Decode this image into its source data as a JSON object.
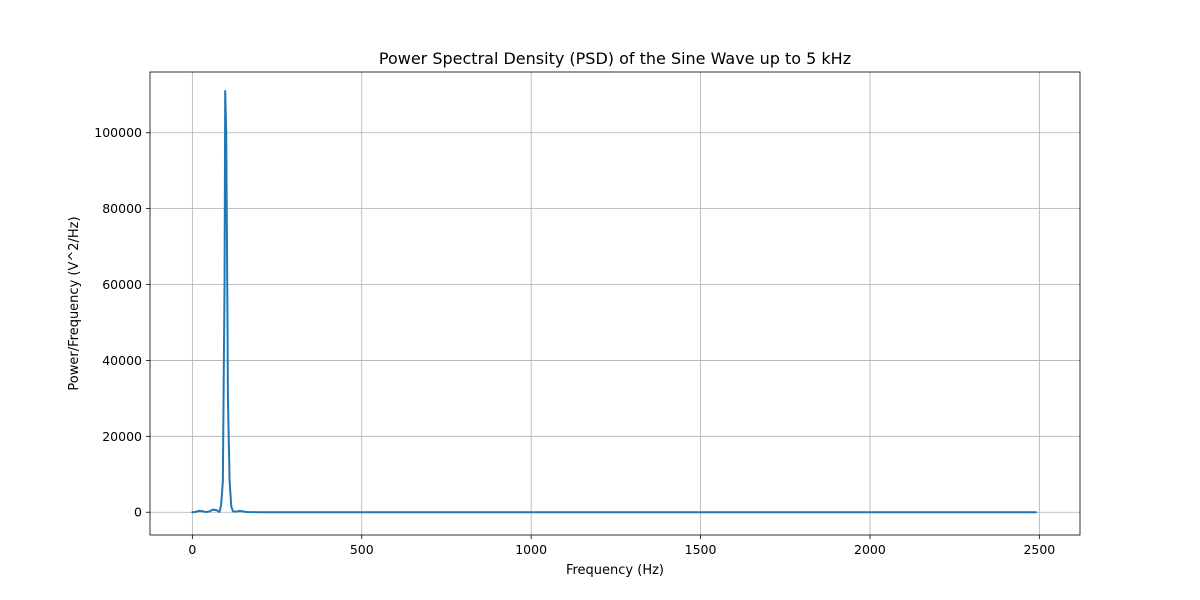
{
  "chart_data": {
    "type": "line",
    "title": "Power Spectral Density (PSD) of the Sine Wave up to 5 kHz",
    "xlabel": "Frequency (Hz)",
    "ylabel": "Power/Frequency (V^2/Hz)",
    "xlim": [
      -125,
      2620
    ],
    "ylim": [
      -6000,
      116000
    ],
    "xticks": [
      0,
      500,
      1000,
      1500,
      2000,
      2500
    ],
    "xtick_labels": [
      "0",
      "500",
      "1000",
      "1500",
      "2000",
      "2500"
    ],
    "yticks": [
      0,
      20000,
      40000,
      60000,
      80000,
      100000
    ],
    "ytick_labels": [
      "0",
      "20000",
      "40000",
      "60000",
      "80000",
      "100000"
    ],
    "grid": true,
    "series_color": "#1f77b4",
    "series": [
      {
        "x": [
          0,
          10,
          20,
          30,
          40,
          50,
          60,
          70,
          80,
          85,
          90,
          95,
          97,
          100,
          103,
          105,
          110,
          115,
          120,
          130,
          140,
          150,
          160,
          180,
          200,
          250,
          300,
          500,
          1000,
          1500,
          2000,
          2490
        ],
        "y": [
          0,
          100,
          350,
          250,
          50,
          200,
          700,
          600,
          50,
          2000,
          8000,
          60000,
          111000,
          100000,
          60000,
          30000,
          8000,
          1500,
          200,
          150,
          350,
          200,
          50,
          20,
          10,
          0,
          0,
          0,
          0,
          0,
          0,
          0
        ]
      }
    ]
  }
}
